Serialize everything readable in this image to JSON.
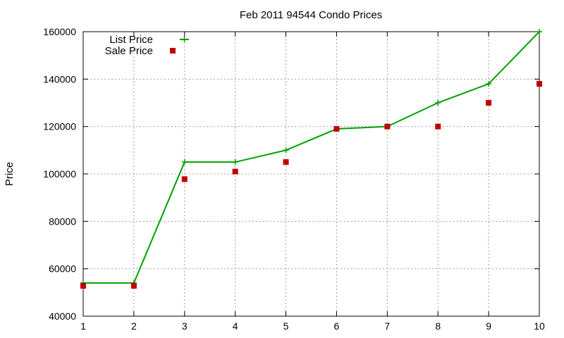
{
  "chart_data": {
    "type": "line",
    "title": "Feb 2011 94544 Condo Prices",
    "xlabel": "",
    "ylabel": "Price",
    "xlim": [
      1,
      10
    ],
    "ylim": [
      40000,
      160000
    ],
    "x_ticks": [
      "1",
      "2",
      "3",
      "4",
      "5",
      "6",
      "7",
      "8",
      "9",
      "10"
    ],
    "y_ticks": [
      "40000",
      "60000",
      "80000",
      "100000",
      "120000",
      "140000",
      "160000"
    ],
    "grid": true,
    "legend_position": "top-left",
    "x": [
      1,
      2,
      3,
      4,
      5,
      6,
      7,
      8,
      9,
      10
    ],
    "series": [
      {
        "name": "List Price",
        "style": "linespoints",
        "color": "#00a000",
        "values": [
          54000,
          54000,
          105000,
          105000,
          110000,
          119000,
          120000,
          130000,
          138000,
          160000
        ]
      },
      {
        "name": "Sale Price",
        "style": "points",
        "color": "#c00000",
        "values": [
          52800,
          52800,
          97800,
          101000,
          105000,
          119000,
          120000,
          120000,
          130000,
          138000
        ]
      }
    ]
  }
}
